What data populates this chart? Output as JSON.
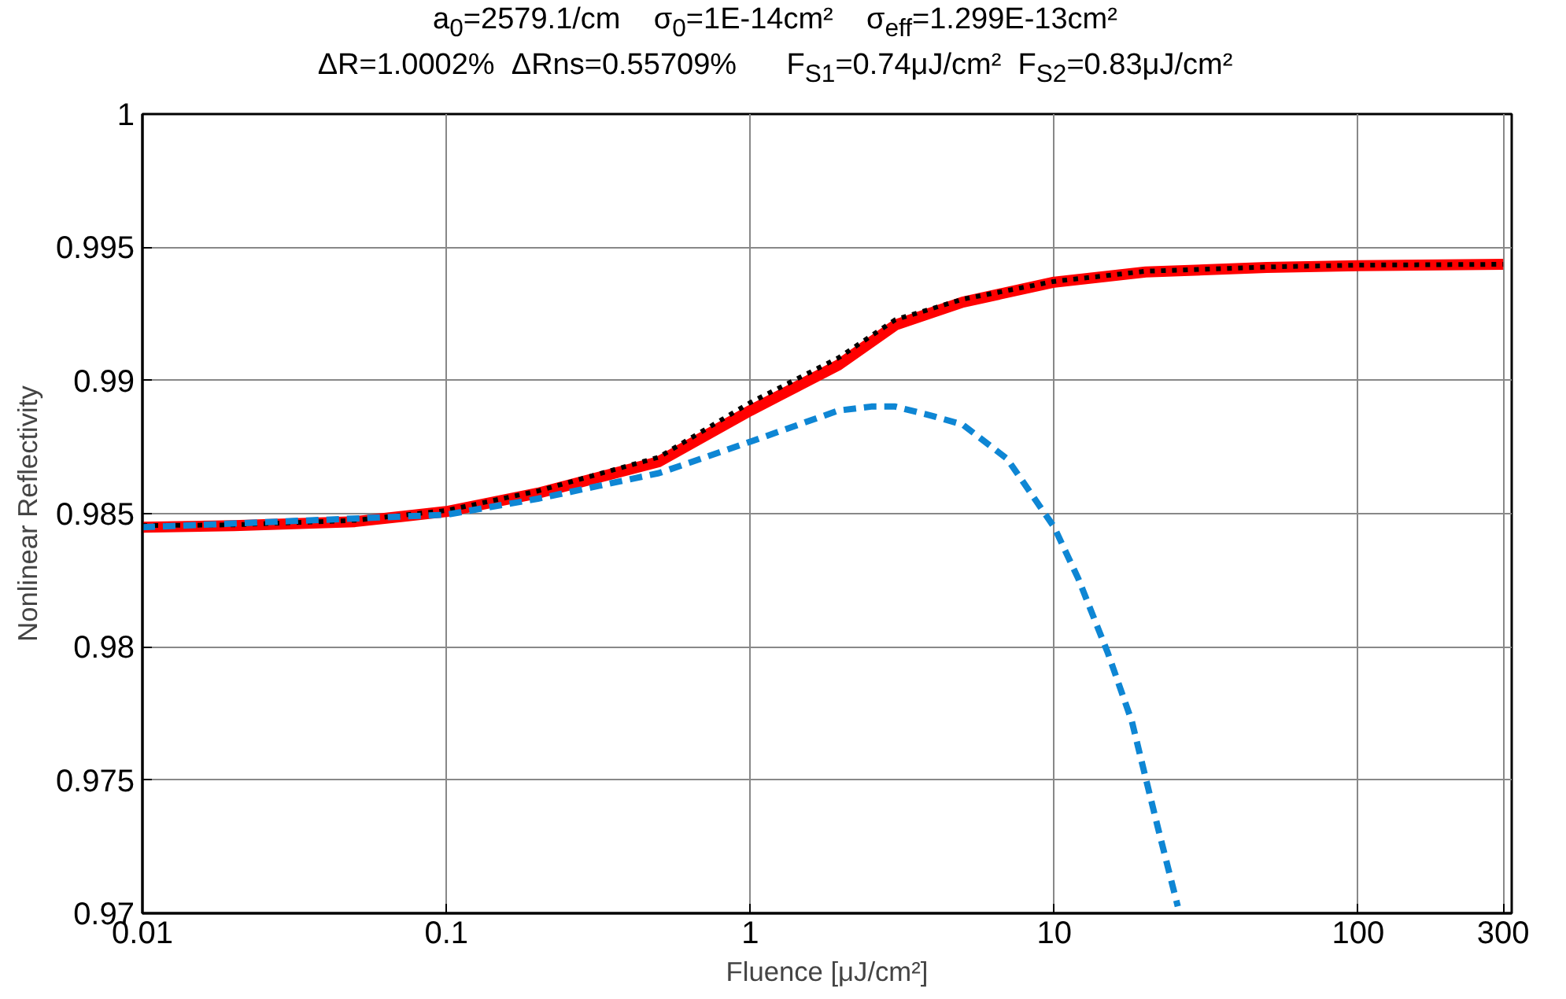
{
  "chart_data": {
    "type": "line",
    "title": "a$_{0}$=2579.1/cm    σ$_{0}$=1E-14cm²    σ$_{eff}$=1.299E-13cm²",
    "subtitle": "ΔR=1.0002%   ΔRns=0.55709%      F$_{S1}$=0.74μJ/cm²   F$_{S2}$=0.83μJ/cm²",
    "xlabel": "Fluence [μJ/cm²]",
    "ylabel": "Nonlinear Reflectivity",
    "log": "x",
    "grid": true,
    "xlim": [
      0.01,
      320
    ],
    "xticks": [
      0.01,
      0.1,
      1,
      10,
      100,
      300
    ],
    "ylim": [
      0.97,
      1
    ],
    "yticks": [
      0.97,
      0.975,
      0.98,
      0.985,
      0.99,
      0.995,
      1
    ],
    "series": [
      {
        "color": "#ff0000",
        "line_style": "solid",
        "x": [
          0.01,
          0.02,
          0.05,
          0.1,
          0.2,
          0.5,
          1,
          1.95,
          3,
          5,
          10,
          20,
          50,
          100,
          300
        ],
        "values": [
          0.98449,
          0.98455,
          0.9847,
          0.98508,
          0.98577,
          0.98695,
          0.98887,
          0.99058,
          0.99208,
          0.99294,
          0.99369,
          0.99407,
          0.99424,
          0.99431,
          0.99436
        ]
      },
      {
        "color": "#000000",
        "line_style": "dotted",
        "x": [
          0.01,
          0.02,
          0.05,
          0.1,
          0.2,
          0.5,
          1,
          1.95,
          3,
          5,
          10,
          20,
          50,
          100,
          300
        ],
        "values": [
          0.98455,
          0.98458,
          0.98475,
          0.98512,
          0.98585,
          0.98712,
          0.98917,
          0.99085,
          0.99228,
          0.99305,
          0.99372,
          0.9941,
          0.99426,
          0.99433,
          0.99436
        ]
      },
      {
        "color": "#0e86d4",
        "line_style": "dashed",
        "x": [
          0.01,
          0.1,
          0.2,
          0.5,
          1,
          1.95,
          2.5,
          3,
          4,
          5,
          7,
          10,
          12,
          15,
          18,
          20,
          22,
          25.5
        ],
        "values": [
          0.98449,
          0.98496,
          0.98556,
          0.98652,
          0.9877,
          0.98887,
          0.98902,
          0.98902,
          0.98866,
          0.98834,
          0.98706,
          0.98449,
          0.98256,
          0.97978,
          0.97721,
          0.97507,
          0.97315,
          0.97026
        ]
      }
    ]
  }
}
